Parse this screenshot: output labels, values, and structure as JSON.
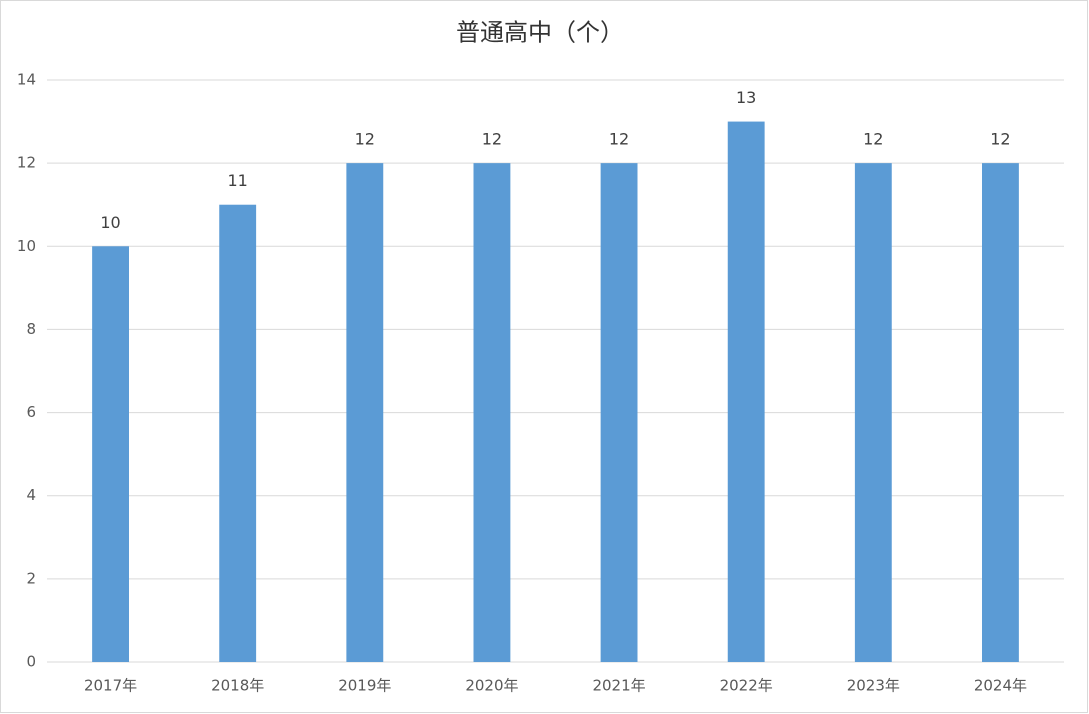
{
  "chart_data": {
    "type": "bar",
    "title": "普通高中（个）",
    "categories": [
      "2017年",
      "2018年",
      "2019年",
      "2020年",
      "2021年",
      "2022年",
      "2023年",
      "2024年"
    ],
    "values": [
      10,
      11,
      12,
      12,
      12,
      13,
      12,
      12
    ],
    "color": "#5b9bd5",
    "ylim": [
      0,
      14
    ],
    "yticks": [
      0,
      2,
      4,
      6,
      8,
      10,
      12,
      14
    ],
    "grid": true
  }
}
